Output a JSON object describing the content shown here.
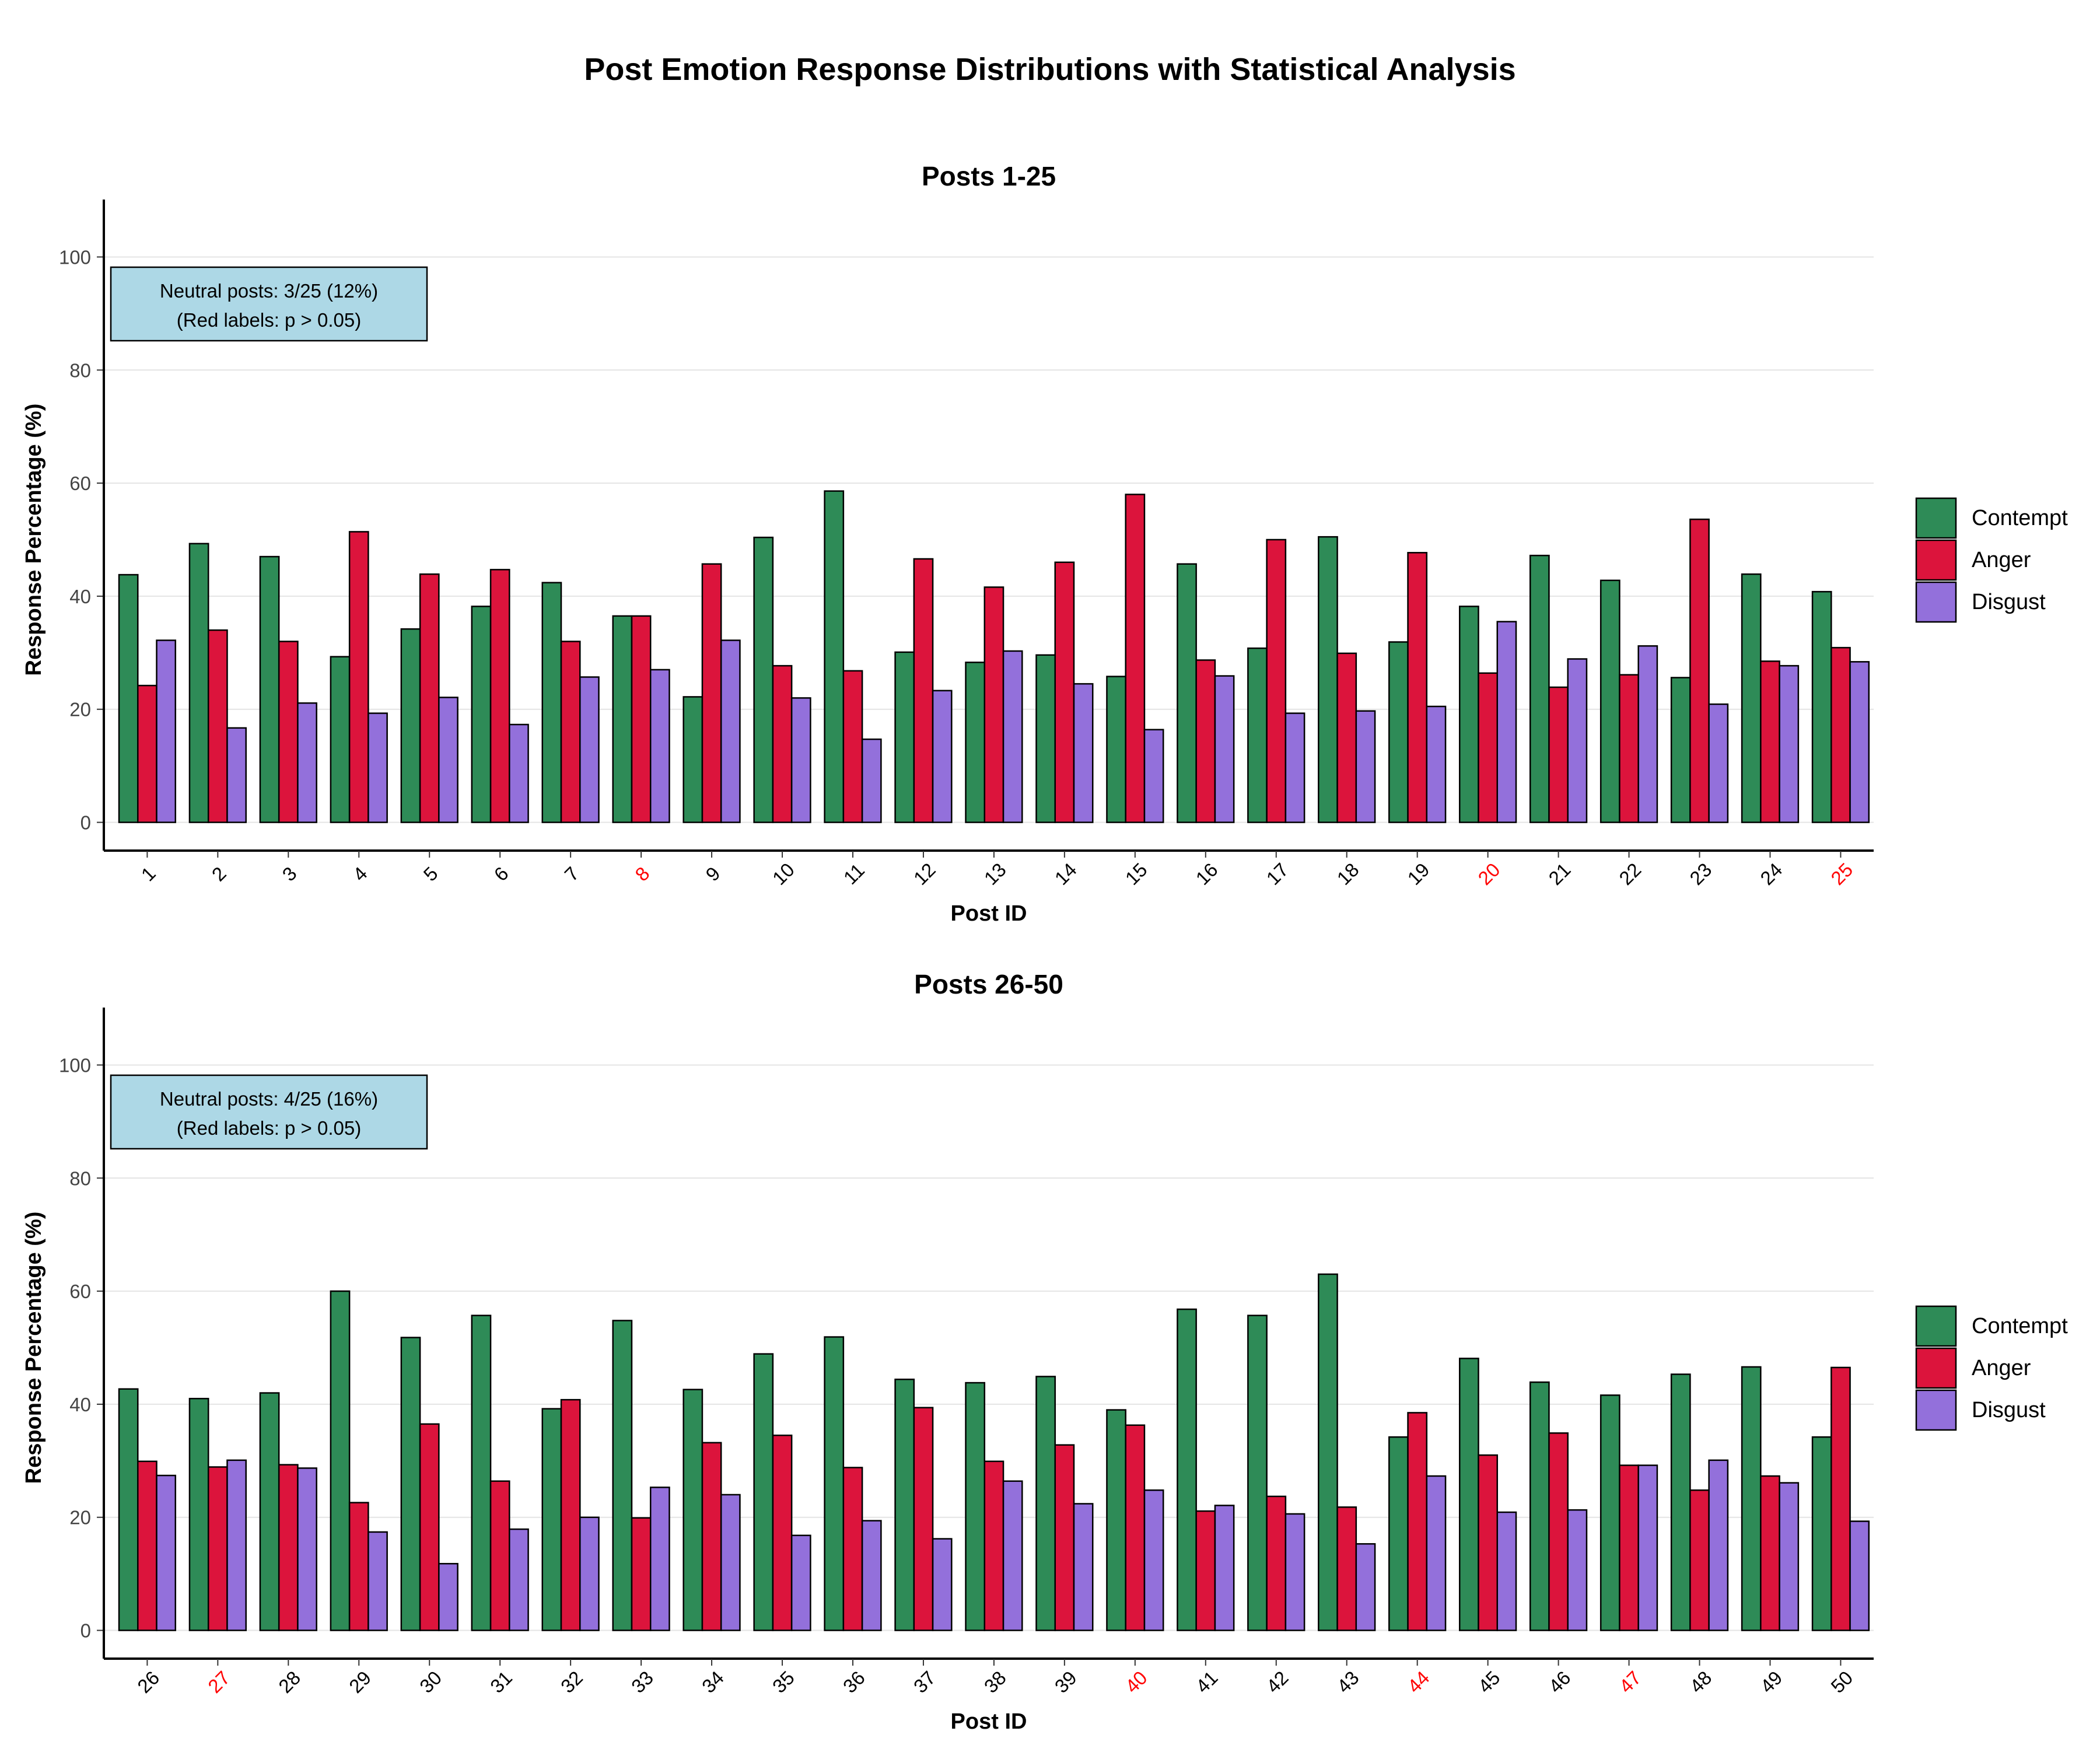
{
  "title": "Post Emotion Response Distributions with Statistical Analysis",
  "colors": {
    "Contempt": "#2e8b57",
    "Anger": "#dc143c",
    "Disgust": "#9370db",
    "significant_label": "#000000",
    "nonsignificant_label": "#ff0000",
    "annotation_box": "#add8e6"
  },
  "legend": [
    "Contempt",
    "Anger",
    "Disgust"
  ],
  "chart_data": [
    {
      "type": "bar",
      "title": "Posts 1-25",
      "xlabel": "Post ID",
      "ylabel": "Response Percentage (%)",
      "ylim": [
        -5,
        105
      ],
      "yticks": [
        0,
        20,
        40,
        60,
        80,
        100
      ],
      "grid": "horizontal",
      "legend_position": "right",
      "annotation": {
        "line1": "Neutral posts: 3/25 (12%)",
        "line2": "(Red labels: p > 0.05)"
      },
      "categories": [
        "1",
        "2",
        "3",
        "4",
        "5",
        "6",
        "7",
        "8",
        "9",
        "10",
        "11",
        "12",
        "13",
        "14",
        "15",
        "16",
        "17",
        "18",
        "19",
        "20",
        "21",
        "22",
        "23",
        "24",
        "25"
      ],
      "red_labels": [
        "8",
        "20",
        "25"
      ],
      "series": [
        {
          "name": "Contempt",
          "values": [
            43.8,
            49.3,
            47.0,
            29.3,
            34.2,
            38.2,
            42.4,
            36.5,
            22.2,
            50.4,
            58.6,
            30.1,
            28.3,
            29.6,
            25.8,
            45.7,
            30.8,
            50.5,
            31.9,
            38.2,
            47.2,
            42.8,
            25.6,
            43.9,
            40.8
          ]
        },
        {
          "name": "Anger",
          "values": [
            24.2,
            34.0,
            32.0,
            51.4,
            43.9,
            44.7,
            32.0,
            36.5,
            45.7,
            27.7,
            26.8,
            46.6,
            41.6,
            46.0,
            58.0,
            28.7,
            50.0,
            29.9,
            47.7,
            26.4,
            23.9,
            26.1,
            53.6,
            28.5,
            30.9
          ]
        },
        {
          "name": "Disgust",
          "values": [
            32.2,
            16.7,
            21.1,
            19.3,
            22.1,
            17.3,
            25.7,
            27.0,
            32.2,
            22.0,
            14.7,
            23.3,
            30.3,
            24.5,
            16.4,
            25.9,
            19.3,
            19.7,
            20.5,
            35.5,
            28.9,
            31.2,
            20.9,
            27.7,
            28.4
          ]
        }
      ]
    },
    {
      "type": "bar",
      "title": "Posts 26-50",
      "xlabel": "Post ID",
      "ylabel": "Response Percentage (%)",
      "ylim": [
        -5,
        105
      ],
      "yticks": [
        0,
        20,
        40,
        60,
        80,
        100
      ],
      "grid": "horizontal",
      "legend_position": "right",
      "annotation": {
        "line1": "Neutral posts: 4/25 (16%)",
        "line2": "(Red labels: p > 0.05)"
      },
      "categories": [
        "26",
        "27",
        "28",
        "29",
        "30",
        "31",
        "32",
        "33",
        "34",
        "35",
        "36",
        "37",
        "38",
        "39",
        "40",
        "41",
        "42",
        "43",
        "44",
        "45",
        "46",
        "47",
        "48",
        "49",
        "50"
      ],
      "red_labels": [
        "27",
        "40",
        "44",
        "47"
      ],
      "series": [
        {
          "name": "Contempt",
          "values": [
            42.7,
            41.0,
            42.0,
            60.0,
            51.8,
            55.7,
            39.2,
            54.8,
            42.6,
            48.9,
            51.9,
            44.4,
            43.8,
            44.9,
            39.0,
            56.8,
            55.7,
            63.0,
            34.2,
            48.1,
            43.9,
            41.6,
            45.3,
            46.6,
            34.2
          ]
        },
        {
          "name": "Anger",
          "values": [
            29.9,
            28.9,
            29.3,
            22.6,
            36.5,
            26.4,
            40.8,
            19.9,
            33.2,
            34.5,
            28.8,
            39.4,
            29.9,
            32.8,
            36.3,
            21.1,
            23.7,
            21.8,
            38.5,
            31.0,
            34.9,
            29.2,
            24.8,
            27.3,
            46.5
          ]
        },
        {
          "name": "Disgust",
          "values": [
            27.4,
            30.1,
            28.7,
            17.4,
            11.8,
            17.9,
            20.0,
            25.3,
            24.0,
            16.8,
            19.4,
            16.2,
            26.4,
            22.4,
            24.8,
            22.1,
            20.6,
            15.3,
            27.3,
            20.9,
            21.3,
            29.2,
            30.1,
            26.1,
            19.3
          ]
        }
      ]
    }
  ]
}
